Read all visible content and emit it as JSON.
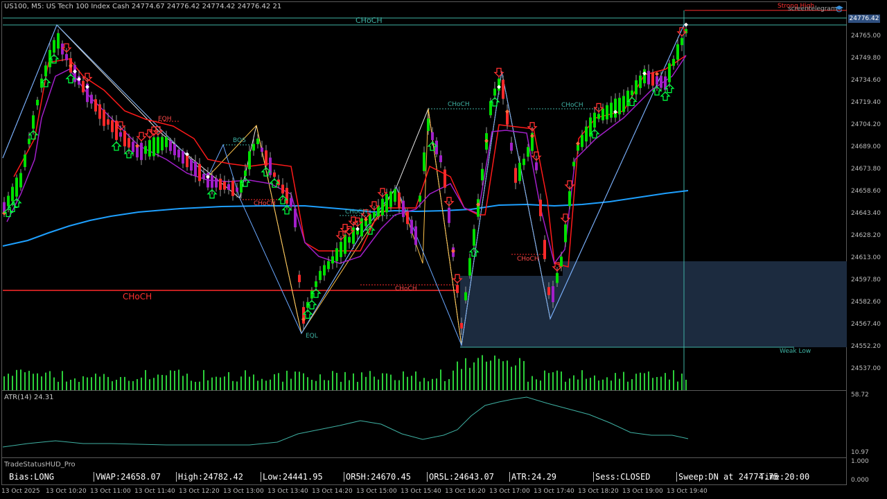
{
  "chart": {
    "symbol_info": "US100, M5:  US Tech 100 Index Cash  24774.67 24776.42 24774.42 24776.42  21",
    "current_price": "24776.42",
    "brand_text": "screentelegram",
    "brand_icon": "graduation-cap-icon",
    "price_labels": [
      "24765.00",
      "24749.80",
      "24734.60",
      "24719.40",
      "24704.20",
      "24689.00",
      "24673.80",
      "24658.60",
      "24643.40",
      "24628.20",
      "24613.00",
      "24597.80",
      "24582.60",
      "24567.40",
      "24552.20",
      "24537.00"
    ],
    "annotations": {
      "choch_top": "CHoCH",
      "choch_left": "CHoCH",
      "choch_mid1": "CHoCH",
      "choch_mid2": "CHoCH",
      "choch_mid3": "CHoCH",
      "choch_mid4": "CHoCH",
      "choch_mid5": "CHoCH",
      "choch_mid6": "CHoCH",
      "eqh": "EQH",
      "eql": "EQL",
      "bos": "BOS",
      "strong_high": "Strong High",
      "weak_low": "Weak Low"
    },
    "colors": {
      "bull": "#00e000",
      "bear": "#ff2a2a",
      "vwap": "#1ea0ff",
      "supertrend": "#ff1a1a",
      "purple": "#a21fc9",
      "zone": "#1c2b3f",
      "teal": "#3fb2a4"
    }
  },
  "atr": {
    "label": "ATR(14) 24.31",
    "scale_top": "58.72",
    "scale_bottom": "10.97"
  },
  "hud": {
    "title": "TradeStatusHUD_Pro",
    "scale_top": "1.000",
    "scale_bottom": "0.000",
    "items": [
      "Bias:LONG",
      "VWAP:24658.07",
      "High:24782.42",
      "Low:24441.95",
      "OR5H:24670.45",
      "OR5L:24643.07",
      "ATR:24.29",
      "Sess:CLOSED",
      "Sweep:DN at 24774.75",
      "Time:20:00"
    ]
  },
  "time_labels": [
    "13 Oct 2025",
    "13 Oct 10:20",
    "13 Oct 11:00",
    "13 Oct 11:40",
    "13 Oct 12:20",
    "13 Oct 13:00",
    "13 Oct 13:40",
    "13 Oct 14:20",
    "13 Oct 15:00",
    "13 Oct 15:40",
    "13 Oct 16:20",
    "13 Oct 17:00",
    "13 Oct 17:40",
    "13 Oct 18:20",
    "13 Oct 19:00",
    "13 Oct 19:40"
  ]
}
